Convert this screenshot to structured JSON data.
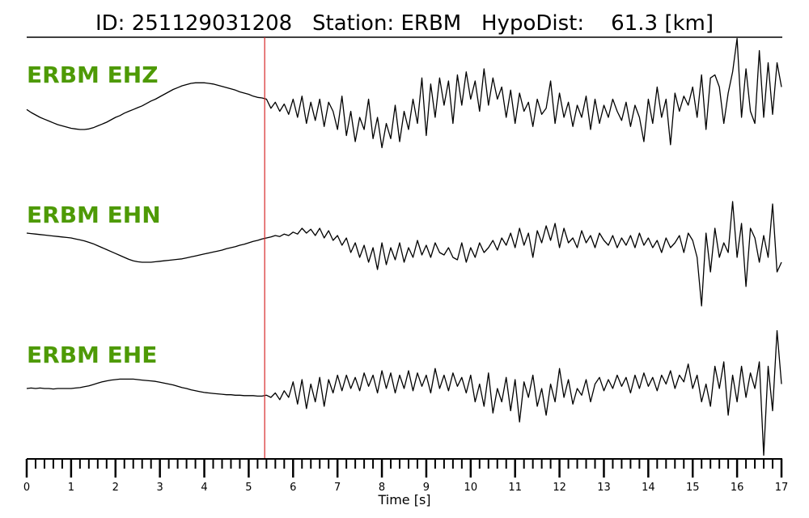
{
  "chart_data": {
    "type": "line",
    "title": "ID: 251129031208   Station: ERBM   HypoDist:    61.3 [km]",
    "xlabel": "Time [s]",
    "xlim": [
      0,
      17
    ],
    "xticks": [
      "0",
      "1",
      "2",
      "3",
      "4",
      "5",
      "6",
      "7",
      "8",
      "9",
      "10",
      "11",
      "12",
      "13",
      "14",
      "15",
      "16",
      "17"
    ],
    "minor_tick_step": 0.2,
    "pick_time": 5.36,
    "pick_color": "#d62728",
    "label_color": "#4e9a06",
    "trace_color": "#000000",
    "dt": 0.1,
    "series": [
      {
        "name": "ERBM EHZ",
        "values": [
          -0.07,
          -0.12,
          -0.16,
          -0.2,
          -0.23,
          -0.26,
          -0.29,
          -0.32,
          -0.34,
          -0.36,
          -0.38,
          -0.39,
          -0.4,
          -0.4,
          -0.39,
          -0.37,
          -0.34,
          -0.31,
          -0.28,
          -0.24,
          -0.2,
          -0.17,
          -0.13,
          -0.1,
          -0.07,
          -0.04,
          -0.01,
          0.03,
          0.07,
          0.1,
          0.14,
          0.18,
          0.22,
          0.26,
          0.29,
          0.32,
          0.34,
          0.36,
          0.37,
          0.37,
          0.37,
          0.36,
          0.35,
          0.33,
          0.31,
          0.29,
          0.27,
          0.25,
          0.22,
          0.2,
          0.18,
          0.15,
          0.13,
          0.12,
          0.1,
          -0.05,
          0.05,
          -0.1,
          0.02,
          -0.15,
          0.1,
          -0.2,
          0.15,
          -0.3,
          0.05,
          -0.25,
          0.1,
          -0.35,
          0.05,
          -0.1,
          -0.4,
          0.15,
          -0.5,
          -0.1,
          -0.6,
          -0.2,
          -0.4,
          0.1,
          -0.55,
          -0.2,
          -0.7,
          -0.3,
          -0.55,
          0.0,
          -0.6,
          -0.1,
          -0.4,
          0.1,
          -0.3,
          0.45,
          -0.5,
          0.35,
          -0.2,
          0.45,
          0.0,
          0.4,
          -0.3,
          0.5,
          0.0,
          0.55,
          0.1,
          0.4,
          -0.1,
          0.6,
          0.0,
          0.45,
          0.1,
          0.3,
          -0.2,
          0.25,
          -0.3,
          0.2,
          -0.1,
          0.05,
          -0.35,
          0.1,
          -0.15,
          -0.05,
          0.4,
          -0.3,
          0.2,
          -0.2,
          0.05,
          -0.35,
          0.0,
          -0.2,
          0.15,
          -0.4,
          0.1,
          -0.3,
          0.0,
          -0.2,
          0.1,
          -0.1,
          -0.25,
          0.05,
          -0.35,
          0.0,
          -0.2,
          -0.6,
          0.1,
          -0.3,
          0.3,
          -0.2,
          0.1,
          -0.65,
          0.2,
          -0.1,
          0.15,
          0.0,
          0.3,
          -0.2,
          0.5,
          -0.4,
          0.45,
          0.5,
          0.3,
          -0.3,
          0.2,
          0.55,
          1.1,
          -0.2,
          0.6,
          -0.1,
          -0.3,
          0.9,
          -0.2,
          0.7,
          -0.15,
          0.7,
          0.3
        ]
      },
      {
        "name": "ERBM EHN",
        "values": [
          0.2,
          0.19,
          0.18,
          0.17,
          0.16,
          0.15,
          0.14,
          0.13,
          0.12,
          0.11,
          0.1,
          0.08,
          0.06,
          0.04,
          0.01,
          -0.02,
          -0.06,
          -0.1,
          -0.14,
          -0.18,
          -0.22,
          -0.26,
          -0.3,
          -0.34,
          -0.37,
          -0.39,
          -0.4,
          -0.4,
          -0.4,
          -0.39,
          -0.38,
          -0.37,
          -0.36,
          -0.35,
          -0.34,
          -0.33,
          -0.31,
          -0.29,
          -0.27,
          -0.25,
          -0.23,
          -0.21,
          -0.19,
          -0.17,
          -0.15,
          -0.12,
          -0.1,
          -0.08,
          -0.05,
          -0.03,
          0.0,
          0.03,
          0.05,
          0.08,
          0.1,
          0.12,
          0.15,
          0.13,
          0.18,
          0.15,
          0.22,
          0.18,
          0.3,
          0.2,
          0.28,
          0.15,
          0.3,
          0.1,
          0.25,
          0.05,
          0.15,
          -0.05,
          0.1,
          -0.2,
          0.0,
          -0.3,
          -0.05,
          -0.4,
          -0.1,
          -0.55,
          0.0,
          -0.45,
          -0.1,
          -0.35,
          0.0,
          -0.4,
          -0.1,
          -0.3,
          0.05,
          -0.25,
          -0.05,
          -0.3,
          0.0,
          -0.2,
          -0.25,
          -0.1,
          -0.3,
          -0.35,
          0.0,
          -0.4,
          -0.1,
          -0.3,
          0.0,
          -0.2,
          -0.1,
          0.05,
          -0.15,
          0.1,
          -0.05,
          0.2,
          -0.1,
          0.3,
          -0.05,
          0.2,
          -0.3,
          0.25,
          0.0,
          0.35,
          0.05,
          0.4,
          -0.1,
          0.3,
          0.0,
          0.1,
          -0.1,
          0.25,
          0.0,
          0.15,
          -0.1,
          0.2,
          0.05,
          -0.05,
          0.15,
          -0.1,
          0.1,
          -0.05,
          0.15,
          -0.1,
          0.2,
          -0.05,
          0.1,
          -0.1,
          0.05,
          -0.2,
          0.1,
          -0.1,
          0.0,
          0.15,
          -0.2,
          0.2,
          0.05,
          -0.3,
          -1.3,
          0.2,
          -0.6,
          0.3,
          -0.3,
          0.0,
          -0.2,
          0.85,
          -0.3,
          0.4,
          -0.9,
          0.3,
          0.1,
          -0.4,
          0.15,
          -0.3,
          0.8,
          -0.6,
          -0.4
        ]
      },
      {
        "name": "ERBM EHE",
        "values": [
          0,
          0.01,
          0.0,
          0.01,
          0.0,
          0.0,
          -0.01,
          0.0,
          0.0,
          0.0,
          0.0,
          0.01,
          0.02,
          0.04,
          0.06,
          0.09,
          0.12,
          0.15,
          0.17,
          0.19,
          0.2,
          0.21,
          0.21,
          0.21,
          0.21,
          0.2,
          0.19,
          0.18,
          0.17,
          0.16,
          0.14,
          0.12,
          0.1,
          0.08,
          0.05,
          0.02,
          0.0,
          -0.03,
          -0.05,
          -0.07,
          -0.09,
          -0.1,
          -0.11,
          -0.12,
          -0.13,
          -0.14,
          -0.14,
          -0.15,
          -0.15,
          -0.16,
          -0.16,
          -0.16,
          -0.17,
          -0.17,
          -0.15,
          -0.2,
          -0.1,
          -0.25,
          -0.05,
          -0.2,
          0.15,
          -0.35,
          0.2,
          -0.45,
          0.1,
          -0.3,
          0.25,
          -0.4,
          0.2,
          -0.1,
          0.3,
          -0.05,
          0.3,
          0.0,
          0.25,
          -0.05,
          0.35,
          0.05,
          0.3,
          -0.1,
          0.4,
          0.0,
          0.35,
          -0.1,
          0.3,
          0.0,
          0.4,
          -0.05,
          0.35,
          0.05,
          0.3,
          -0.1,
          0.45,
          0.0,
          0.3,
          -0.05,
          0.35,
          0.05,
          0.25,
          -0.1,
          0.3,
          -0.3,
          0.1,
          -0.4,
          0.35,
          -0.55,
          0.0,
          -0.3,
          0.25,
          -0.5,
          0.2,
          -0.75,
          0.15,
          -0.2,
          0.3,
          -0.4,
          0.0,
          -0.6,
          0.1,
          -0.3,
          0.45,
          -0.2,
          0.2,
          -0.35,
          0.0,
          -0.15,
          0.2,
          -0.3,
          0.1,
          0.25,
          -0.05,
          0.2,
          0.0,
          0.3,
          0.05,
          0.25,
          -0.1,
          0.3,
          0.0,
          0.35,
          0.05,
          0.25,
          -0.05,
          0.3,
          0.1,
          0.4,
          0.0,
          0.3,
          0.15,
          0.55,
          0.0,
          0.3,
          -0.3,
          0.1,
          -0.4,
          0.5,
          0.0,
          0.6,
          -0.6,
          0.3,
          -0.3,
          0.5,
          -0.2,
          0.35,
          0.0,
          0.6,
          -1.5,
          0.5,
          -0.5,
          1.3,
          0.1
        ]
      }
    ]
  }
}
